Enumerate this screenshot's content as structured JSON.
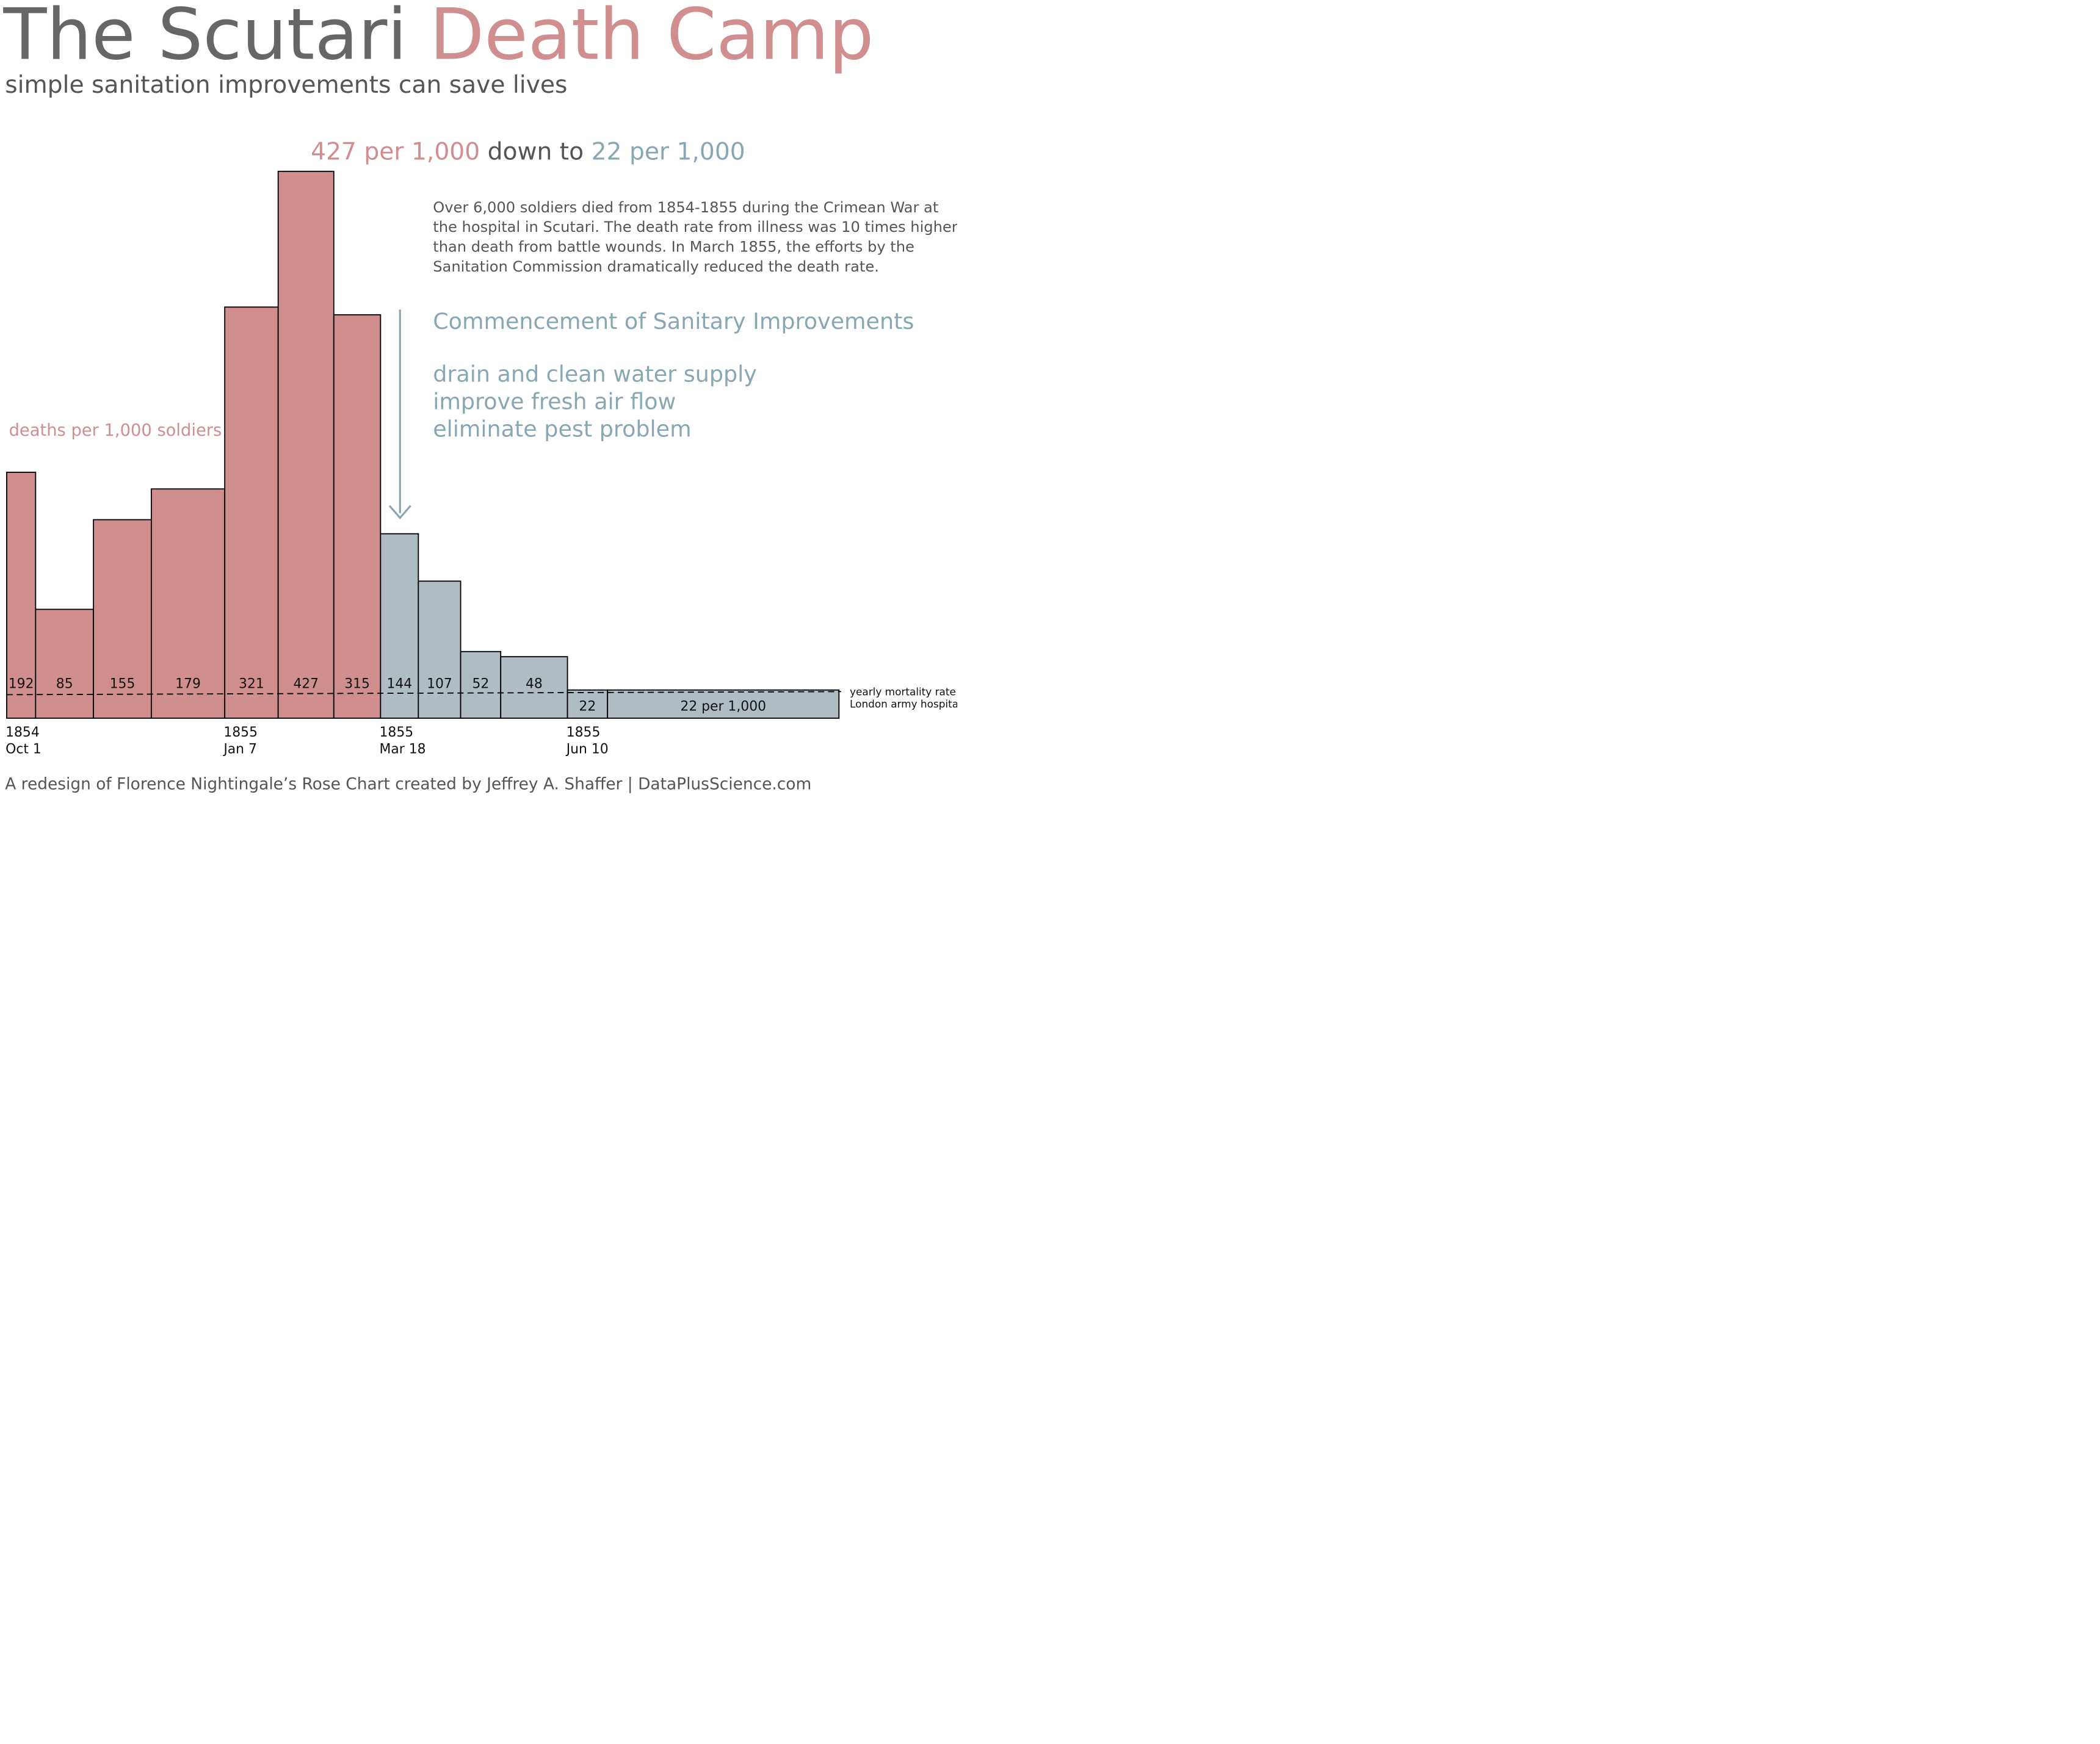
{
  "title_part1": "The Scutari",
  "title_part2": "Death Camp",
  "subtitle": "simple sanitation improvements can save lives",
  "headline_part1": "427 per 1,000",
  "headline_part2": "down to",
  "headline_part3": "22 per 1,000",
  "description_lines": [
    "Over 6,000 soldiers died from 1854-1855 during the Crimean War at",
    "the hospital in Scutari. The death rate from illness was 10 times higher",
    "than death from battle wounds. In March 1855, the efforts by the",
    "Sanitation Commission dramatically reduced the death rate."
  ],
  "improvements_heading": "Commencement of Sanitary Improvements",
  "improvements_items": [
    "drain and clean water supply",
    "improve fresh air flow",
    "eliminate pest problem"
  ],
  "footer": "A redesign of Florence Nightingale’s Rose Chart created by Jeffrey A. Shaffer | DataPlusScience.com",
  "colors": {
    "title_gray": "#666666",
    "text_gray": "#555555",
    "before": "#d08e8f",
    "after": "#b0bcc3",
    "accent_blue": "#86a7b3",
    "outline": "#000000"
  },
  "chart_data": {
    "type": "bar",
    "ylabel": "deaths per 1,000 soldiers",
    "ylim": [
      0,
      427
    ],
    "bars": [
      {
        "label": "192",
        "value": 192,
        "start": "1854-10-01",
        "end": "1854-10-14",
        "phase": "before"
      },
      {
        "label": "85",
        "value": 85,
        "start": "1854-10-14",
        "end": "1854-11-09",
        "phase": "before"
      },
      {
        "label": "155",
        "value": 155,
        "start": "1854-11-09",
        "end": "1854-12-05",
        "phase": "before"
      },
      {
        "label": "179",
        "value": 179,
        "start": "1854-12-05",
        "end": "1855-01-07",
        "phase": "before"
      },
      {
        "label": "321",
        "value": 321,
        "start": "1855-01-07",
        "end": "1855-01-31",
        "phase": "before"
      },
      {
        "label": "427",
        "value": 427,
        "start": "1855-01-31",
        "end": "1855-02-25",
        "phase": "before"
      },
      {
        "label": "315",
        "value": 315,
        "start": "1855-02-25",
        "end": "1855-03-18",
        "phase": "before"
      },
      {
        "label": "144",
        "value": 144,
        "start": "1855-03-18",
        "end": "1855-04-04",
        "phase": "after"
      },
      {
        "label": "107",
        "value": 107,
        "start": "1855-04-04",
        "end": "1855-04-23",
        "phase": "after"
      },
      {
        "label": "52",
        "value": 52,
        "start": "1855-04-23",
        "end": "1855-05-11",
        "phase": "after"
      },
      {
        "label": "48",
        "value": 48,
        "start": "1855-05-11",
        "end": "1855-06-10",
        "phase": "after"
      },
      {
        "label": "22",
        "value": 22,
        "start": "1855-06-10",
        "end": "1855-06-28",
        "phase": "after"
      },
      {
        "label": "22 per 1,000",
        "value": 22,
        "start": "1855-06-28",
        "end": "1855-10-10",
        "phase": "after"
      }
    ],
    "reference_line": {
      "value": 19,
      "label_lines": [
        "yearly mortality rate in",
        "London army hospitals"
      ]
    },
    "annotation_date": "1855-03-18",
    "x_ticks": [
      {
        "date": "1854-10-01",
        "lines": [
          "1854",
          "Oct 1"
        ]
      },
      {
        "date": "1855-01-07",
        "lines": [
          "1855",
          "Jan 7"
        ]
      },
      {
        "date": "1855-03-18",
        "lines": [
          "1855",
          "Mar 18"
        ]
      },
      {
        "date": "1855-06-10",
        "lines": [
          "1855",
          "Jun 10"
        ]
      }
    ]
  }
}
